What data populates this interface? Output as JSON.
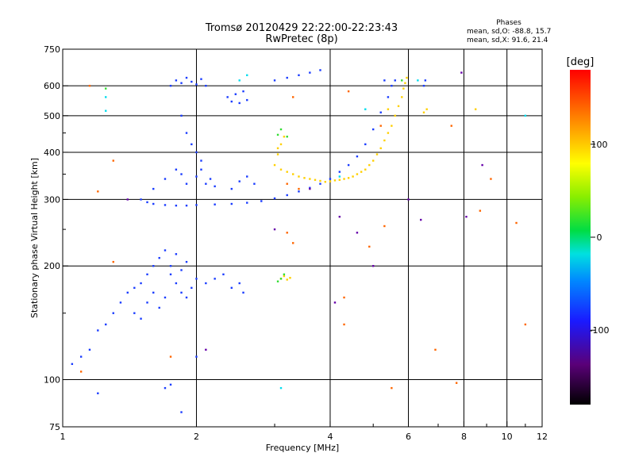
{
  "title": "Tromsø 20120429 22:22:00-22:23:43",
  "subtitle": "RwPretec (8p)",
  "phases_box": {
    "heading": "Phases",
    "line1": "mean, sd,O: -88.8, 15.7",
    "line2": "mean, sd,X:  91.6, 21.4"
  },
  "colorbar": {
    "unit_label": "[deg]",
    "tick_labels": [
      "100",
      "0",
      "-100"
    ],
    "tick_values": [
      100,
      0,
      -100
    ],
    "range": [
      -180,
      180
    ]
  },
  "chart_data": {
    "type": "scatter",
    "title": "Tromsø 20120429 22:22:00-22:23:43",
    "subtitle": "RwPretec (8p)",
    "xlabel": "Frequency [MHz]",
    "ylabel": "Stationary phase Virtual Height [km]",
    "x_scale": "log",
    "y_scale": "log",
    "xlim": [
      1,
      12
    ],
    "ylim": [
      75,
      750
    ],
    "x_ticks": [
      1,
      2,
      4,
      6,
      8,
      10,
      12
    ],
    "x_tick_labels": [
      "1",
      "2",
      "4",
      "6",
      "8",
      "10",
      "12"
    ],
    "y_ticks": [
      75,
      100,
      200,
      300,
      400,
      500,
      600,
      750
    ],
    "y_tick_labels": [
      "75",
      "100",
      "200",
      "300",
      "400",
      "500",
      "600",
      "750"
    ],
    "x_gridlines": [
      2,
      4,
      6,
      8,
      10
    ],
    "y_gridlines": [
      100,
      200,
      300,
      400,
      500,
      600
    ],
    "minor_ticks_x": [
      3,
      5,
      7,
      9,
      11
    ],
    "minor_ticks_y": [
      150,
      250,
      350,
      450
    ],
    "grid": true,
    "series": [
      {
        "color": "#1a3cff",
        "points": [
          [
            1.05,
            110
          ],
          [
            1.1,
            115
          ],
          [
            1.15,
            120
          ],
          [
            1.2,
            135
          ],
          [
            1.25,
            140
          ],
          [
            1.3,
            150
          ],
          [
            1.35,
            160
          ],
          [
            1.4,
            170
          ],
          [
            1.45,
            175
          ],
          [
            1.5,
            180
          ],
          [
            1.55,
            190
          ],
          [
            1.6,
            200
          ],
          [
            1.65,
            210
          ],
          [
            1.7,
            220
          ],
          [
            1.75,
            190
          ],
          [
            1.8,
            180
          ],
          [
            1.85,
            170
          ],
          [
            1.9,
            165
          ],
          [
            1.95,
            175
          ],
          [
            2.0,
            185
          ],
          [
            1.45,
            150
          ],
          [
            1.5,
            145
          ],
          [
            1.55,
            160
          ],
          [
            1.6,
            170
          ],
          [
            1.65,
            155
          ],
          [
            1.7,
            165
          ],
          [
            1.75,
            200
          ],
          [
            1.8,
            215
          ],
          [
            1.85,
            195
          ],
          [
            1.9,
            205
          ],
          [
            2.1,
            180
          ],
          [
            2.2,
            185
          ],
          [
            2.3,
            190
          ],
          [
            2.4,
            175
          ],
          [
            2.5,
            180
          ],
          [
            2.55,
            170
          ],
          [
            1.5,
            300
          ],
          [
            1.55,
            295
          ],
          [
            1.6,
            292
          ],
          [
            1.7,
            290
          ],
          [
            1.8,
            289
          ],
          [
            1.9,
            289
          ],
          [
            2.0,
            290
          ],
          [
            2.2,
            291
          ],
          [
            2.4,
            292
          ],
          [
            2.6,
            294
          ],
          [
            2.8,
            297
          ],
          [
            3.0,
            302
          ],
          [
            3.2,
            308
          ],
          [
            3.4,
            315
          ],
          [
            3.6,
            322
          ],
          [
            3.8,
            330
          ],
          [
            4.0,
            340
          ],
          [
            4.2,
            355
          ],
          [
            4.4,
            370
          ],
          [
            4.6,
            390
          ],
          [
            4.8,
            420
          ],
          [
            5.0,
            460
          ],
          [
            5.2,
            510
          ],
          [
            5.4,
            560
          ],
          [
            1.6,
            320
          ],
          [
            1.7,
            340
          ],
          [
            1.8,
            360
          ],
          [
            1.85,
            350
          ],
          [
            1.9,
            330
          ],
          [
            2.0,
            345
          ],
          [
            2.05,
            360
          ],
          [
            2.1,
            330
          ],
          [
            2.15,
            340
          ],
          [
            2.2,
            325
          ],
          [
            1.75,
            600
          ],
          [
            1.8,
            620
          ],
          [
            1.85,
            610
          ],
          [
            1.9,
            630
          ],
          [
            1.95,
            615
          ],
          [
            2.0,
            605
          ],
          [
            2.05,
            625
          ],
          [
            2.1,
            600
          ],
          [
            2.35,
            560
          ],
          [
            2.4,
            545
          ],
          [
            2.45,
            570
          ],
          [
            2.5,
            540
          ],
          [
            2.55,
            580
          ],
          [
            2.6,
            550
          ],
          [
            3.0,
            620
          ],
          [
            3.2,
            630
          ],
          [
            3.4,
            640
          ],
          [
            3.6,
            650
          ],
          [
            3.8,
            660
          ],
          [
            1.85,
            500
          ],
          [
            1.9,
            450
          ],
          [
            1.95,
            420
          ],
          [
            2.0,
            400
          ],
          [
            2.05,
            380
          ],
          [
            2.4,
            320
          ],
          [
            2.5,
            335
          ],
          [
            2.6,
            345
          ],
          [
            2.7,
            330
          ],
          [
            1.7,
            95
          ],
          [
            1.75,
            97
          ],
          [
            2.0,
            115
          ],
          [
            1.2,
            92
          ],
          [
            1.85,
            82
          ],
          [
            5.5,
            600
          ],
          [
            5.6,
            620
          ],
          [
            6.5,
            600
          ],
          [
            6.55,
            620
          ],
          [
            5.3,
            620
          ]
        ]
      },
      {
        "color": "#ffd000",
        "points": [
          [
            3.0,
            370
          ],
          [
            3.1,
            360
          ],
          [
            3.2,
            355
          ],
          [
            3.3,
            350
          ],
          [
            3.4,
            345
          ],
          [
            3.5,
            342
          ],
          [
            3.6,
            340
          ],
          [
            3.7,
            338
          ],
          [
            3.8,
            336
          ],
          [
            3.9,
            334
          ],
          [
            4.0,
            335
          ],
          [
            4.1,
            337
          ],
          [
            4.2,
            338
          ],
          [
            4.3,
            340
          ],
          [
            4.4,
            342
          ],
          [
            4.5,
            345
          ],
          [
            4.6,
            350
          ],
          [
            4.7,
            355
          ],
          [
            4.8,
            360
          ],
          [
            4.9,
            370
          ],
          [
            5.0,
            380
          ],
          [
            5.1,
            395
          ],
          [
            5.2,
            410
          ],
          [
            5.3,
            430
          ],
          [
            5.4,
            450
          ],
          [
            5.5,
            470
          ],
          [
            5.6,
            500
          ],
          [
            5.7,
            530
          ],
          [
            5.8,
            560
          ],
          [
            5.85,
            590
          ],
          [
            5.9,
            610
          ],
          [
            5.95,
            630
          ],
          [
            3.05,
            395
          ],
          [
            3.1,
            420
          ],
          [
            3.15,
            440
          ],
          [
            3.05,
            410
          ],
          [
            3.1,
            185
          ],
          [
            3.15,
            188
          ],
          [
            3.2,
            184
          ],
          [
            3.25,
            186
          ],
          [
            6.5,
            510
          ],
          [
            6.6,
            520
          ],
          [
            8.5,
            520
          ],
          [
            5.4,
            520
          ]
        ]
      },
      {
        "color": "#33dd33",
        "points": [
          [
            3.1,
            185
          ],
          [
            3.15,
            190
          ],
          [
            3.05,
            182
          ],
          [
            3.1,
            460
          ],
          [
            3.05,
            445
          ],
          [
            3.2,
            440
          ],
          [
            1.25,
            590
          ],
          [
            5.8,
            620
          ]
        ]
      },
      {
        "color": "#00ddee",
        "points": [
          [
            1.25,
            515
          ],
          [
            1.25,
            560
          ],
          [
            2.5,
            620
          ],
          [
            2.6,
            640
          ],
          [
            4.8,
            520
          ],
          [
            6.3,
            620
          ],
          [
            11.0,
            500
          ],
          [
            4.2,
            345
          ],
          [
            3.1,
            95
          ]
        ]
      },
      {
        "color": "#ff6600",
        "points": [
          [
            1.15,
            600
          ],
          [
            1.3,
            380
          ],
          [
            1.2,
            315
          ],
          [
            1.3,
            205
          ],
          [
            3.3,
            560
          ],
          [
            4.4,
            580
          ],
          [
            5.2,
            470
          ],
          [
            5.3,
            255
          ],
          [
            7.5,
            470
          ],
          [
            8.7,
            280
          ],
          [
            9.2,
            340
          ],
          [
            10.5,
            260
          ],
          [
            11.0,
            140
          ],
          [
            4.3,
            140
          ],
          [
            4.3,
            165
          ],
          [
            5.5,
            95
          ],
          [
            6.9,
            120
          ],
          [
            7.7,
            98
          ],
          [
            3.2,
            245
          ],
          [
            3.3,
            230
          ],
          [
            4.9,
            225
          ],
          [
            3.4,
            320
          ],
          [
            3.2,
            330
          ],
          [
            1.1,
            105
          ],
          [
            1.75,
            115
          ]
        ]
      },
      {
        "color": "#6600aa",
        "points": [
          [
            2.1,
            120
          ],
          [
            3.0,
            250
          ],
          [
            4.1,
            160
          ],
          [
            5.0,
            200
          ],
          [
            6.4,
            265
          ],
          [
            7.9,
            650
          ],
          [
            6.0,
            300
          ],
          [
            4.6,
            245
          ],
          [
            1.4,
            300
          ],
          [
            8.1,
            270
          ],
          [
            8.8,
            370
          ],
          [
            3.6,
            320
          ],
          [
            4.2,
            270
          ]
        ]
      }
    ]
  }
}
